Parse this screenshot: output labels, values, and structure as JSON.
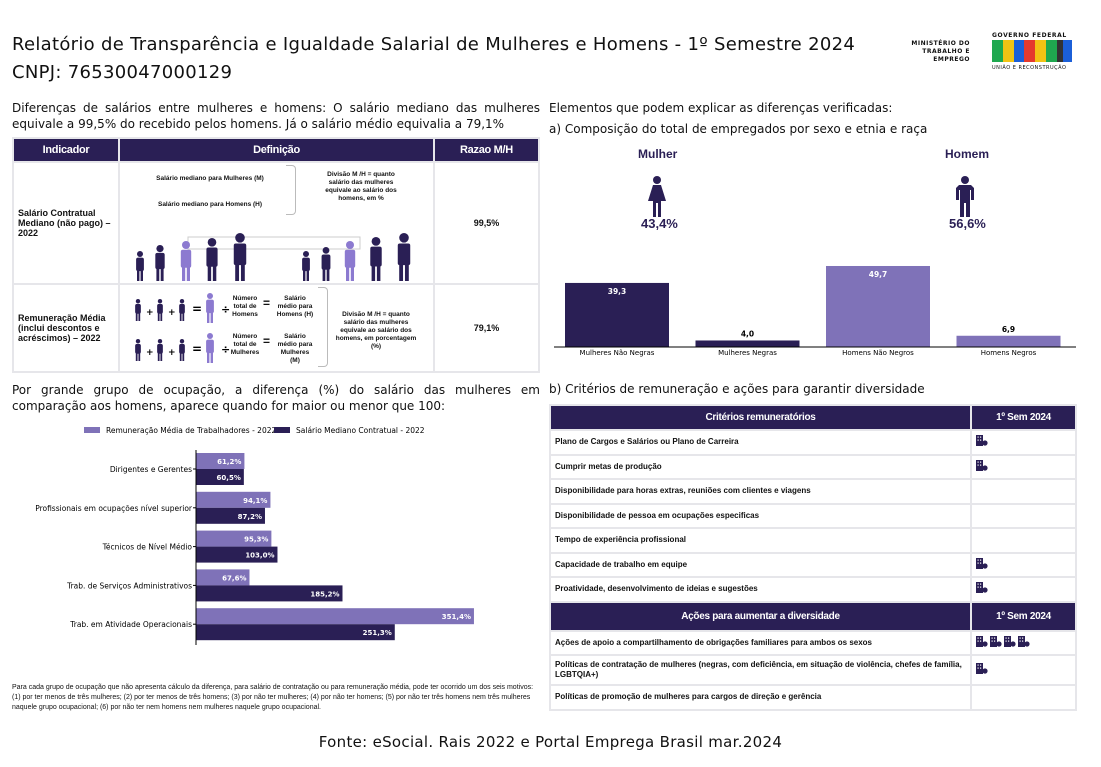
{
  "header": {
    "title": "Relatório de Transparência e Igualdade Salarial de Mulheres e Homens - 1º Semestre 2024",
    "cnpj": "CNPJ: 76530047000129",
    "logo_ministry": "MINISTÉRIO DO TRABALHO E EMPREGO",
    "logo_gov": "GOVERNO FEDERAL",
    "logo_brasil": "BRASIL",
    "logo_slogan": "UNIÃO E RECONSTRUÇÃO"
  },
  "left": {
    "intro": "Diferenças de salários entre mulheres e homens: O salário mediano das mulheres equivale a 99,5% do recebido pelos homens. Já o salário médio equivalia a 79,1%",
    "table": {
      "headers": [
        "Indicador",
        "Definição",
        "Razao M/H"
      ],
      "rows": [
        {
          "indicator": "Salário Contratual Mediano (não pago) – 2022",
          "def": {
            "m": "Salário mediano para Mulheres (M)",
            "h": "Salário mediano para Homens (H)",
            "div": "Divisão M /H = quanto salário das mulheres equivale ao salário dos homens, em %"
          },
          "ratio": "99,5%"
        },
        {
          "indicator": "Remuneração Média (inclui descontos e acréscimos) – 2022",
          "def": {
            "nh": "Número total de Homens",
            "sh": "Salário médio para Homens (H)",
            "nm": "Número total de Mulheres",
            "sm": "Salário médio para Mulheres (M)",
            "div": "Divisão M /H = quanto salário das mulheres equivale ao salário dos homens, em porcentagem (%)",
            "plus": "+",
            "eq": "=",
            "divsign": "÷"
          },
          "ratio": "79,1%"
        }
      ]
    },
    "occupation_intro": "Por grande grupo de ocupação, a diferença (%) do salário das mulheres em comparação aos homens, aparece quando for maior ou menor que 100:",
    "footnote": "Para cada grupo de ocupação que não apresenta cálculo da diferença, para salário de contratação ou para remuneração média, pode ter ocorrido um dos seis motivos:(1) por ter menos de três mulheres; (2) por ter menos de três homens; (3) por não ter mulheres; (4) por não ter homens; (5) por não ter três homens nem três mulheres naquele grupo ocupacional; (6) por não ter nem homens nem mulheres naquele grupo ocupacional."
  },
  "chart_data": [
    {
      "type": "bar",
      "orientation": "vertical",
      "title": "a) Composição do total de empregados por sexo e etnia e raça",
      "categories": [
        "Mulheres Não Negras",
        "Mulheres Negras",
        "Homens Não Negros",
        "Homens Negros"
      ],
      "values": [
        39.3,
        4.0,
        49.7,
        6.9
      ],
      "labels": [
        "39,3",
        "4,0",
        "49,7",
        "6,9"
      ],
      "colors": [
        "#2a1f55",
        "#2a1f55",
        "#7f72b8",
        "#7f72b8"
      ],
      "summary": [
        {
          "label": "Mulher",
          "value": "43,4%"
        },
        {
          "label": "Homem",
          "value": "56,6%"
        }
      ]
    },
    {
      "type": "bar",
      "orientation": "horizontal",
      "legend": "top",
      "categories": [
        "Dirigentes e Gerentes",
        "Profissionais em ocupações nível superior",
        "Técnicos de Nível Médio",
        "Trab. de Serviços Administrativos",
        "Trab. em Atividade Operacionais"
      ],
      "series": [
        {
          "name": "Remuneração Média de Trabalhadores - 2022",
          "color": "#7f72b8",
          "values": [
            61.2,
            94.1,
            95.3,
            67.6,
            351.4
          ],
          "labels": [
            "61,2%",
            "94,1%",
            "95,3%",
            "67,6%",
            "351,4%"
          ]
        },
        {
          "name": "Salário Mediano Contratual - 2022",
          "color": "#2a1f55",
          "values": [
            60.5,
            87.2,
            103.0,
            185.2,
            251.3
          ],
          "labels": [
            "60,5%",
            "87,2%",
            "103,0%",
            "185,2%",
            "251,3%"
          ]
        }
      ]
    }
  ],
  "right": {
    "intro": "Elementos que podem explicar as diferenças verificadas:",
    "criteria_title": "b) Critérios de remuneração e ações para garantir diversidade",
    "criteria": {
      "header": "Critérios remuneratórios",
      "period": "1º Sem 2024",
      "rows": [
        {
          "label": "Plano de Cargos e Salários ou Plano de Carreira",
          "icons": 1
        },
        {
          "label": "Cumprir metas de produção",
          "icons": 1
        },
        {
          "label": "Disponibilidade para horas extras, reuniões com clientes e viagens",
          "icons": 0
        },
        {
          "label": "Disponibilidade de pessoa em ocupações especificas",
          "icons": 0
        },
        {
          "label": "Tempo de experiência profissional",
          "icons": 0
        },
        {
          "label": "Capacidade de trabalho em equipe",
          "icons": 1
        },
        {
          "label": "Proatividade, desenvolvimento de ideias e sugestões",
          "icons": 1
        }
      ]
    },
    "actions": {
      "header": "Ações para aumentar a diversidade",
      "period": "1º Sem 2024",
      "rows": [
        {
          "label": "Ações de apoio a compartilhamento de obrigações familiares para ambos os sexos",
          "icons": 4
        },
        {
          "label": "Políticas de contratação de mulheres (negras, com deficiência, em situação de violência, chefes de família, LGBTQIA+)",
          "icons": 1
        },
        {
          "label": "Políticas de promoção de mulheres para cargos de direção e gerência",
          "icons": 0
        }
      ]
    }
  },
  "footer": "Fonte: eSocial. Rais 2022 e Portal Emprega Brasil mar.2024"
}
